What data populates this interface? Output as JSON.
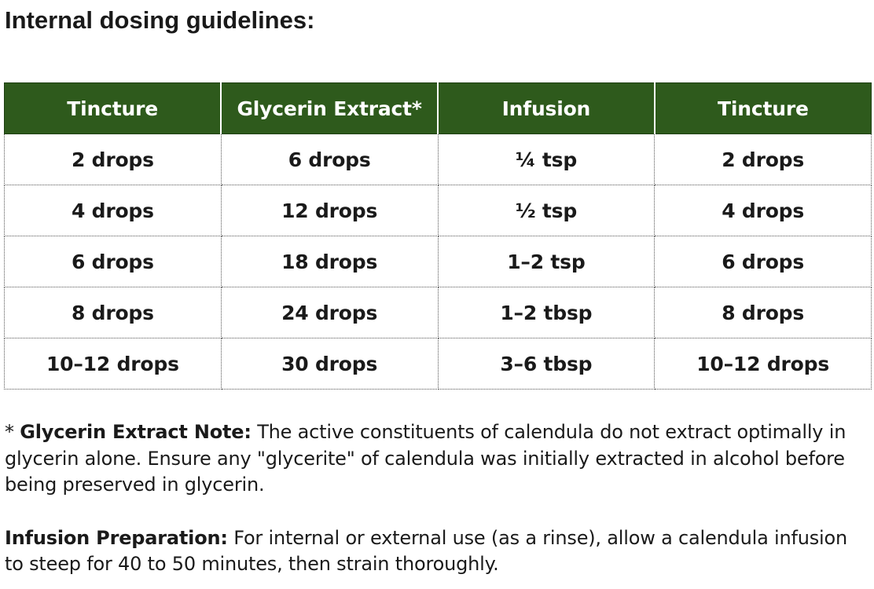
{
  "title": "Internal dosing guidelines:",
  "table": {
    "headers": [
      "Tincture",
      "Glycerin Extract*",
      "Infusion",
      "Tincture"
    ],
    "rows": [
      [
        "2 drops",
        "6 drops",
        "¼ tsp",
        "2 drops"
      ],
      [
        "4 drops",
        "12 drops",
        "½ tsp",
        "4 drops"
      ],
      [
        "6 drops",
        "18 drops",
        "1–2 tsp",
        "6 drops"
      ],
      [
        "8 drops",
        "24 drops",
        "1–2 tbsp",
        "8 drops"
      ],
      [
        "10–12 drops",
        "30 drops",
        "3–6 tbsp",
        "10–12 drops"
      ]
    ]
  },
  "notes": {
    "glycerin": {
      "prefix": "* ",
      "label": "Glycerin Extract Note:",
      "text": " The active constituents of calendula do not extract optimally in glycerin alone. Ensure any \"glycerite\" of calendula was initially extracted in alcohol before being preserved in glycerin."
    },
    "infusion": {
      "label": "Infusion Preparation:",
      "text": " For internal or external use (as a rinse), allow a calendula infusion to steep for 40 to 50 minutes, then strain thoroughly."
    }
  },
  "colors": {
    "header_background": "#2e5a1c",
    "header_text": "#ffffff",
    "body_text": "#1a1a1a"
  }
}
